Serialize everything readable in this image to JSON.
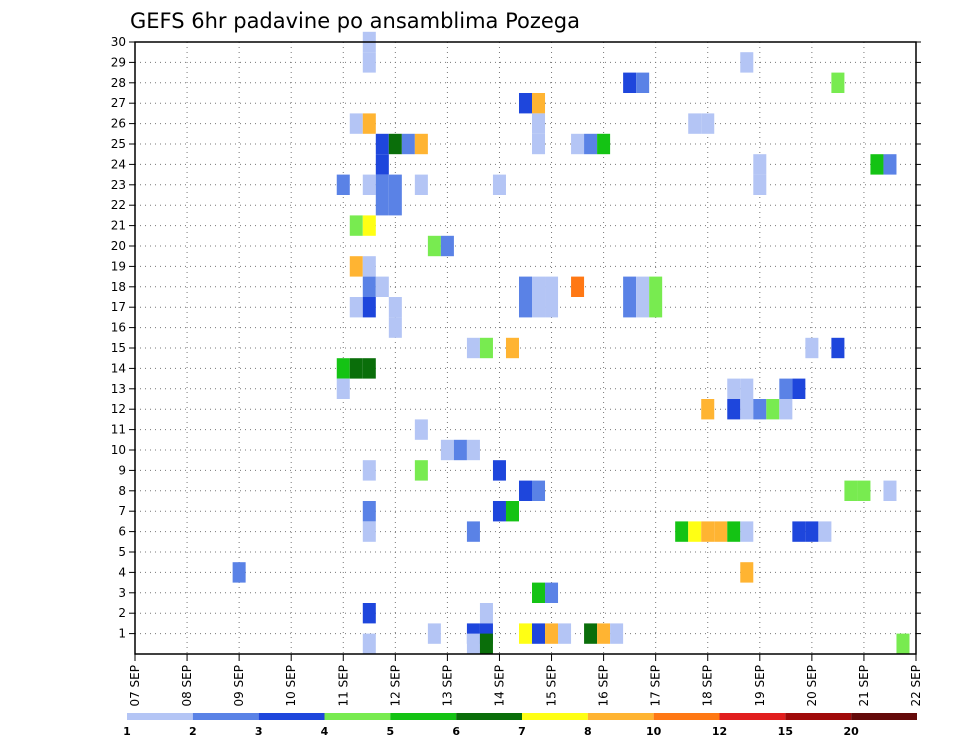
{
  "chart_data": {
    "type": "heatmap",
    "title": "GEFS 6hr padavine po ansamblima Pozega",
    "xlabel": "",
    "ylabel": "",
    "x_range": [
      0,
      60
    ],
    "y_range": [
      0,
      30
    ],
    "x_tick_labels": [
      "07 SEP",
      "08 SEP",
      "09 SEP",
      "10 SEP",
      "11 SEP",
      "12 SEP",
      "13 SEP",
      "14 SEP",
      "15 SEP",
      "16 SEP",
      "17 SEP",
      "18 SEP",
      "19 SEP",
      "20 SEP",
      "21 SEP",
      "22 SEP"
    ],
    "y_tick_labels": [
      "1",
      "2",
      "3",
      "4",
      "5",
      "6",
      "7",
      "8",
      "9",
      "10",
      "11",
      "12",
      "13",
      "14",
      "15",
      "16",
      "17",
      "18",
      "19",
      "20",
      "21",
      "22",
      "23",
      "24",
      "25",
      "26",
      "27",
      "28",
      "29",
      "30"
    ],
    "grid": true,
    "legend_position": "bottom",
    "legend": {
      "labels": [
        "1",
        "2",
        "3",
        "4",
        "5",
        "6",
        "7",
        "8",
        "10",
        "12",
        "15",
        "20"
      ],
      "colors": [
        "#b4c5f5",
        "#5a82e6",
        "#1e46dc",
        "#78eb50",
        "#14c314",
        "#0a6e0a",
        "#ffff14",
        "#ffb432",
        "#ff7814",
        "#e11e1e",
        "#a00a0a",
        "#640a0a"
      ]
    },
    "cells": [
      [
        18,
        30,
        0
      ],
      [
        18,
        29,
        0
      ],
      [
        47,
        29,
        0
      ],
      [
        38,
        28,
        2
      ],
      [
        39,
        28,
        1
      ],
      [
        54,
        28,
        3
      ],
      [
        30,
        27,
        2
      ],
      [
        31,
        27,
        7
      ],
      [
        17,
        26,
        0
      ],
      [
        18,
        26,
        7
      ],
      [
        31,
        26,
        0
      ],
      [
        43,
        26,
        0
      ],
      [
        44,
        26,
        0
      ],
      [
        19,
        25,
        2
      ],
      [
        20,
        25,
        5
      ],
      [
        21,
        25,
        1
      ],
      [
        22,
        25,
        7
      ],
      [
        31,
        25,
        0
      ],
      [
        34,
        25,
        0
      ],
      [
        35,
        25,
        1
      ],
      [
        36,
        25,
        4
      ],
      [
        19,
        24,
        2
      ],
      [
        48,
        24,
        0
      ],
      [
        57,
        24,
        4
      ],
      [
        58,
        24,
        1
      ],
      [
        16,
        23,
        1
      ],
      [
        18,
        23,
        0
      ],
      [
        19,
        23,
        1
      ],
      [
        20,
        23,
        1
      ],
      [
        22,
        23,
        0
      ],
      [
        28,
        23,
        0
      ],
      [
        48,
        23,
        0
      ],
      [
        19,
        22,
        1
      ],
      [
        20,
        22,
        1
      ],
      [
        17,
        21,
        3
      ],
      [
        18,
        21,
        6
      ],
      [
        23,
        20,
        3
      ],
      [
        24,
        20,
        1
      ],
      [
        17,
        19,
        7
      ],
      [
        18,
        19,
        0
      ],
      [
        18,
        18,
        1
      ],
      [
        19,
        18,
        0
      ],
      [
        30,
        18,
        1
      ],
      [
        31,
        18,
        0
      ],
      [
        32,
        18,
        0
      ],
      [
        34,
        18,
        8
      ],
      [
        38,
        18,
        1
      ],
      [
        39,
        18,
        0
      ],
      [
        40,
        18,
        3
      ],
      [
        17,
        17,
        0
      ],
      [
        18,
        17,
        2
      ],
      [
        20,
        17,
        0
      ],
      [
        30,
        17,
        1
      ],
      [
        31,
        17,
        0
      ],
      [
        32,
        17,
        0
      ],
      [
        38,
        17,
        1
      ],
      [
        39,
        17,
        0
      ],
      [
        40,
        17,
        3
      ],
      [
        20,
        16,
        0
      ],
      [
        26,
        15,
        0
      ],
      [
        27,
        15,
        3
      ],
      [
        29,
        15,
        7
      ],
      [
        52,
        15,
        0
      ],
      [
        54,
        15,
        2
      ],
      [
        16,
        14,
        4
      ],
      [
        17,
        14,
        5
      ],
      [
        18,
        14,
        5
      ],
      [
        16,
        13,
        0
      ],
      [
        46,
        13,
        0
      ],
      [
        47,
        13,
        0
      ],
      [
        50,
        13,
        1
      ],
      [
        51,
        13,
        2
      ],
      [
        44,
        12,
        7
      ],
      [
        46,
        12,
        2
      ],
      [
        47,
        12,
        0
      ],
      [
        48,
        12,
        1
      ],
      [
        49,
        12,
        3
      ],
      [
        50,
        12,
        0
      ],
      [
        22,
        11,
        0
      ],
      [
        24,
        10,
        0
      ],
      [
        25,
        10,
        1
      ],
      [
        26,
        10,
        0
      ],
      [
        18,
        9,
        0
      ],
      [
        22,
        9,
        3
      ],
      [
        28,
        9,
        2
      ],
      [
        30,
        8,
        2
      ],
      [
        31,
        8,
        1
      ],
      [
        55,
        8,
        3
      ],
      [
        56,
        8,
        3
      ],
      [
        58,
        8,
        0
      ],
      [
        18,
        7,
        1
      ],
      [
        28,
        7,
        2
      ],
      [
        29,
        7,
        4
      ],
      [
        18,
        6,
        0
      ],
      [
        26,
        6,
        1
      ],
      [
        42,
        6,
        4
      ],
      [
        43,
        6,
        6
      ],
      [
        44,
        6,
        7
      ],
      [
        45,
        6,
        7
      ],
      [
        46,
        6,
        4
      ],
      [
        47,
        6,
        0
      ],
      [
        51,
        6,
        2
      ],
      [
        52,
        6,
        2
      ],
      [
        53,
        6,
        0
      ],
      [
        8,
        4,
        1
      ],
      [
        47,
        4,
        7
      ],
      [
        31,
        3,
        4
      ],
      [
        32,
        3,
        1
      ],
      [
        18,
        2,
        2
      ],
      [
        27,
        2,
        0
      ],
      [
        23,
        1,
        0
      ],
      [
        26,
        1,
        2
      ],
      [
        27,
        1,
        2
      ],
      [
        30,
        1,
        6
      ],
      [
        31,
        1,
        2
      ],
      [
        32,
        1,
        7
      ],
      [
        33,
        1,
        0
      ],
      [
        35,
        1,
        5
      ],
      [
        36,
        1,
        7
      ],
      [
        37,
        1,
        0
      ],
      [
        18,
        0.5,
        0
      ],
      [
        26,
        0.5,
        0
      ],
      [
        27,
        0.5,
        5
      ],
      [
        59,
        0.5,
        3
      ]
    ]
  }
}
